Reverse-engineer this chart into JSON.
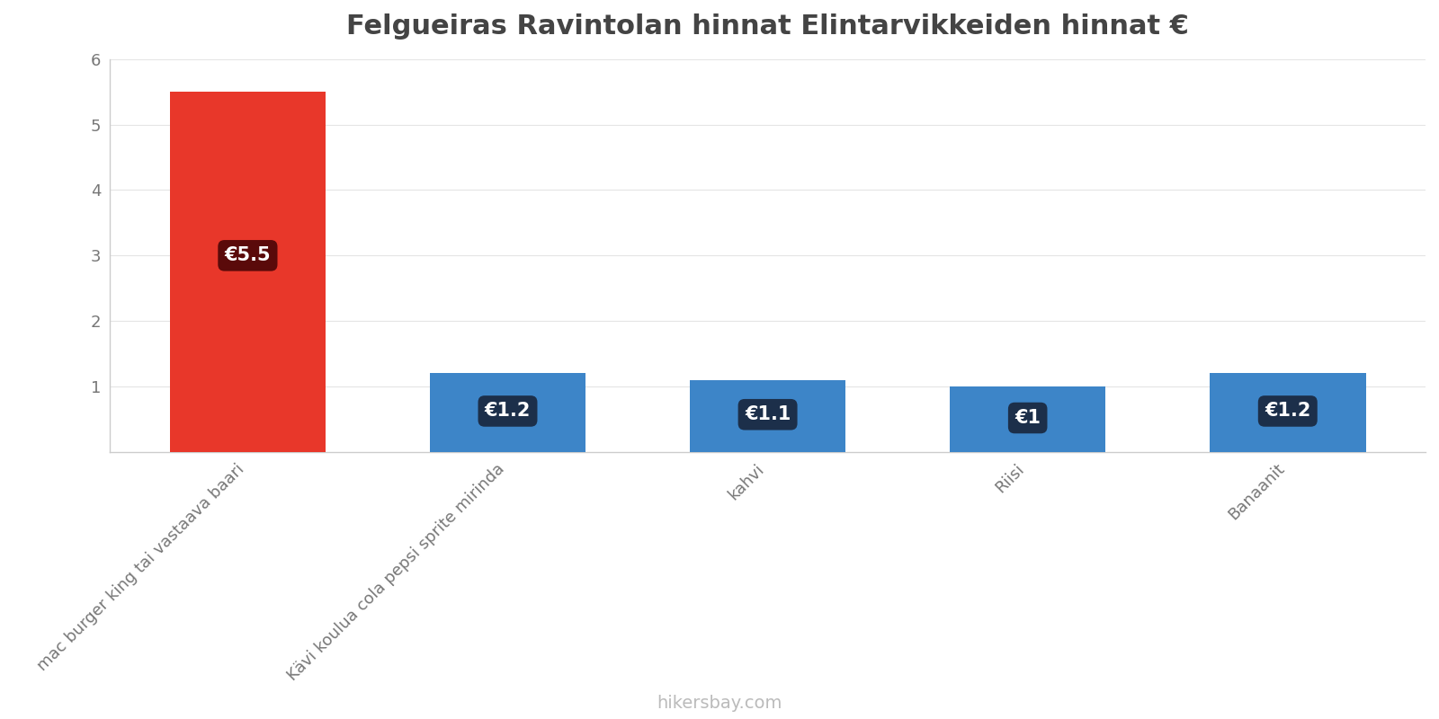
{
  "title": "Felgueiras Ravintolan hinnat Elintarvikkeiden hinnat €",
  "categories": [
    "mac burger king tai vastaava baari",
    "Kävi koulua cola pepsi sprite mirinda",
    "kahvi",
    "Riisi",
    "Banaanit"
  ],
  "values": [
    5.5,
    1.2,
    1.1,
    1.0,
    1.2
  ],
  "colors": [
    "#e8372a",
    "#3d85c8",
    "#3d85c8",
    "#3d85c8",
    "#3d85c8"
  ],
  "labels": [
    "€5.5",
    "€1.2",
    "€1.1",
    "€1",
    "€1.2"
  ],
  "label_bg_red": "#5a0a0a",
  "label_bg_blue": "#1c2f4a",
  "ylim": [
    0,
    6
  ],
  "yticks": [
    1,
    2,
    3,
    4,
    5,
    6
  ],
  "background_color": "#ffffff",
  "title_fontsize": 22,
  "axis_label_fontsize": 13,
  "watermark": "hikersbay.com",
  "watermark_color": "#bbbbbb",
  "watermark_fontsize": 14,
  "bar_width": 0.6
}
